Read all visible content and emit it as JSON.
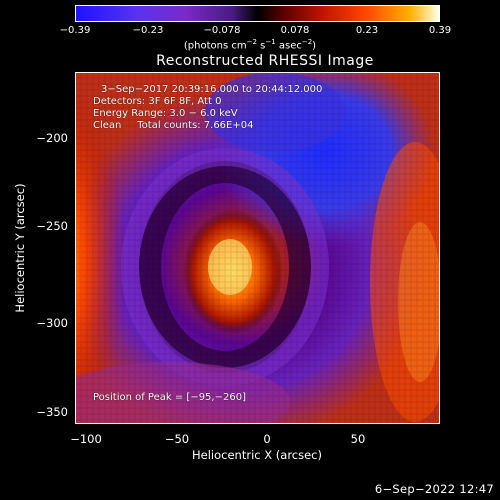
{
  "colorbar": {
    "ticks": [
      "−0.39",
      "−0.23",
      "−0.078",
      "0.078",
      "0.23",
      "0.39"
    ],
    "units_main": "(photons cm",
    "units_exp1": "−2",
    "units_mid1": " s",
    "units_exp2": "−1",
    "units_mid2": " asec",
    "units_exp3": "−2",
    "units_end": ")"
  },
  "title": "Reconstructed RHESSI Image",
  "annotation": {
    "time": "3−Sep−2017 20:39:16.000 to 20:44:12.000",
    "detectors": "Detectors: 3F 6F 8F, Att 0",
    "energy": "Energy Range: 3.0 − 6.0 keV",
    "method": "Clean     Total counts: 7.66E+04",
    "peak": "Position of Peak = [−95,−260]"
  },
  "axes": {
    "xlabel": "Heliocentric X (arcsec)",
    "ylabel": "Heliocentric Y (arcsec)",
    "xticks": [
      "−100",
      "−50",
      "0",
      "50"
    ],
    "yticks": [
      "−200",
      "−250",
      "−300",
      "−350"
    ]
  },
  "footer": {
    "date": "6−Sep−2022 12:47"
  },
  "colors": {
    "bg": "#000000",
    "fg": "#ffffff"
  }
}
